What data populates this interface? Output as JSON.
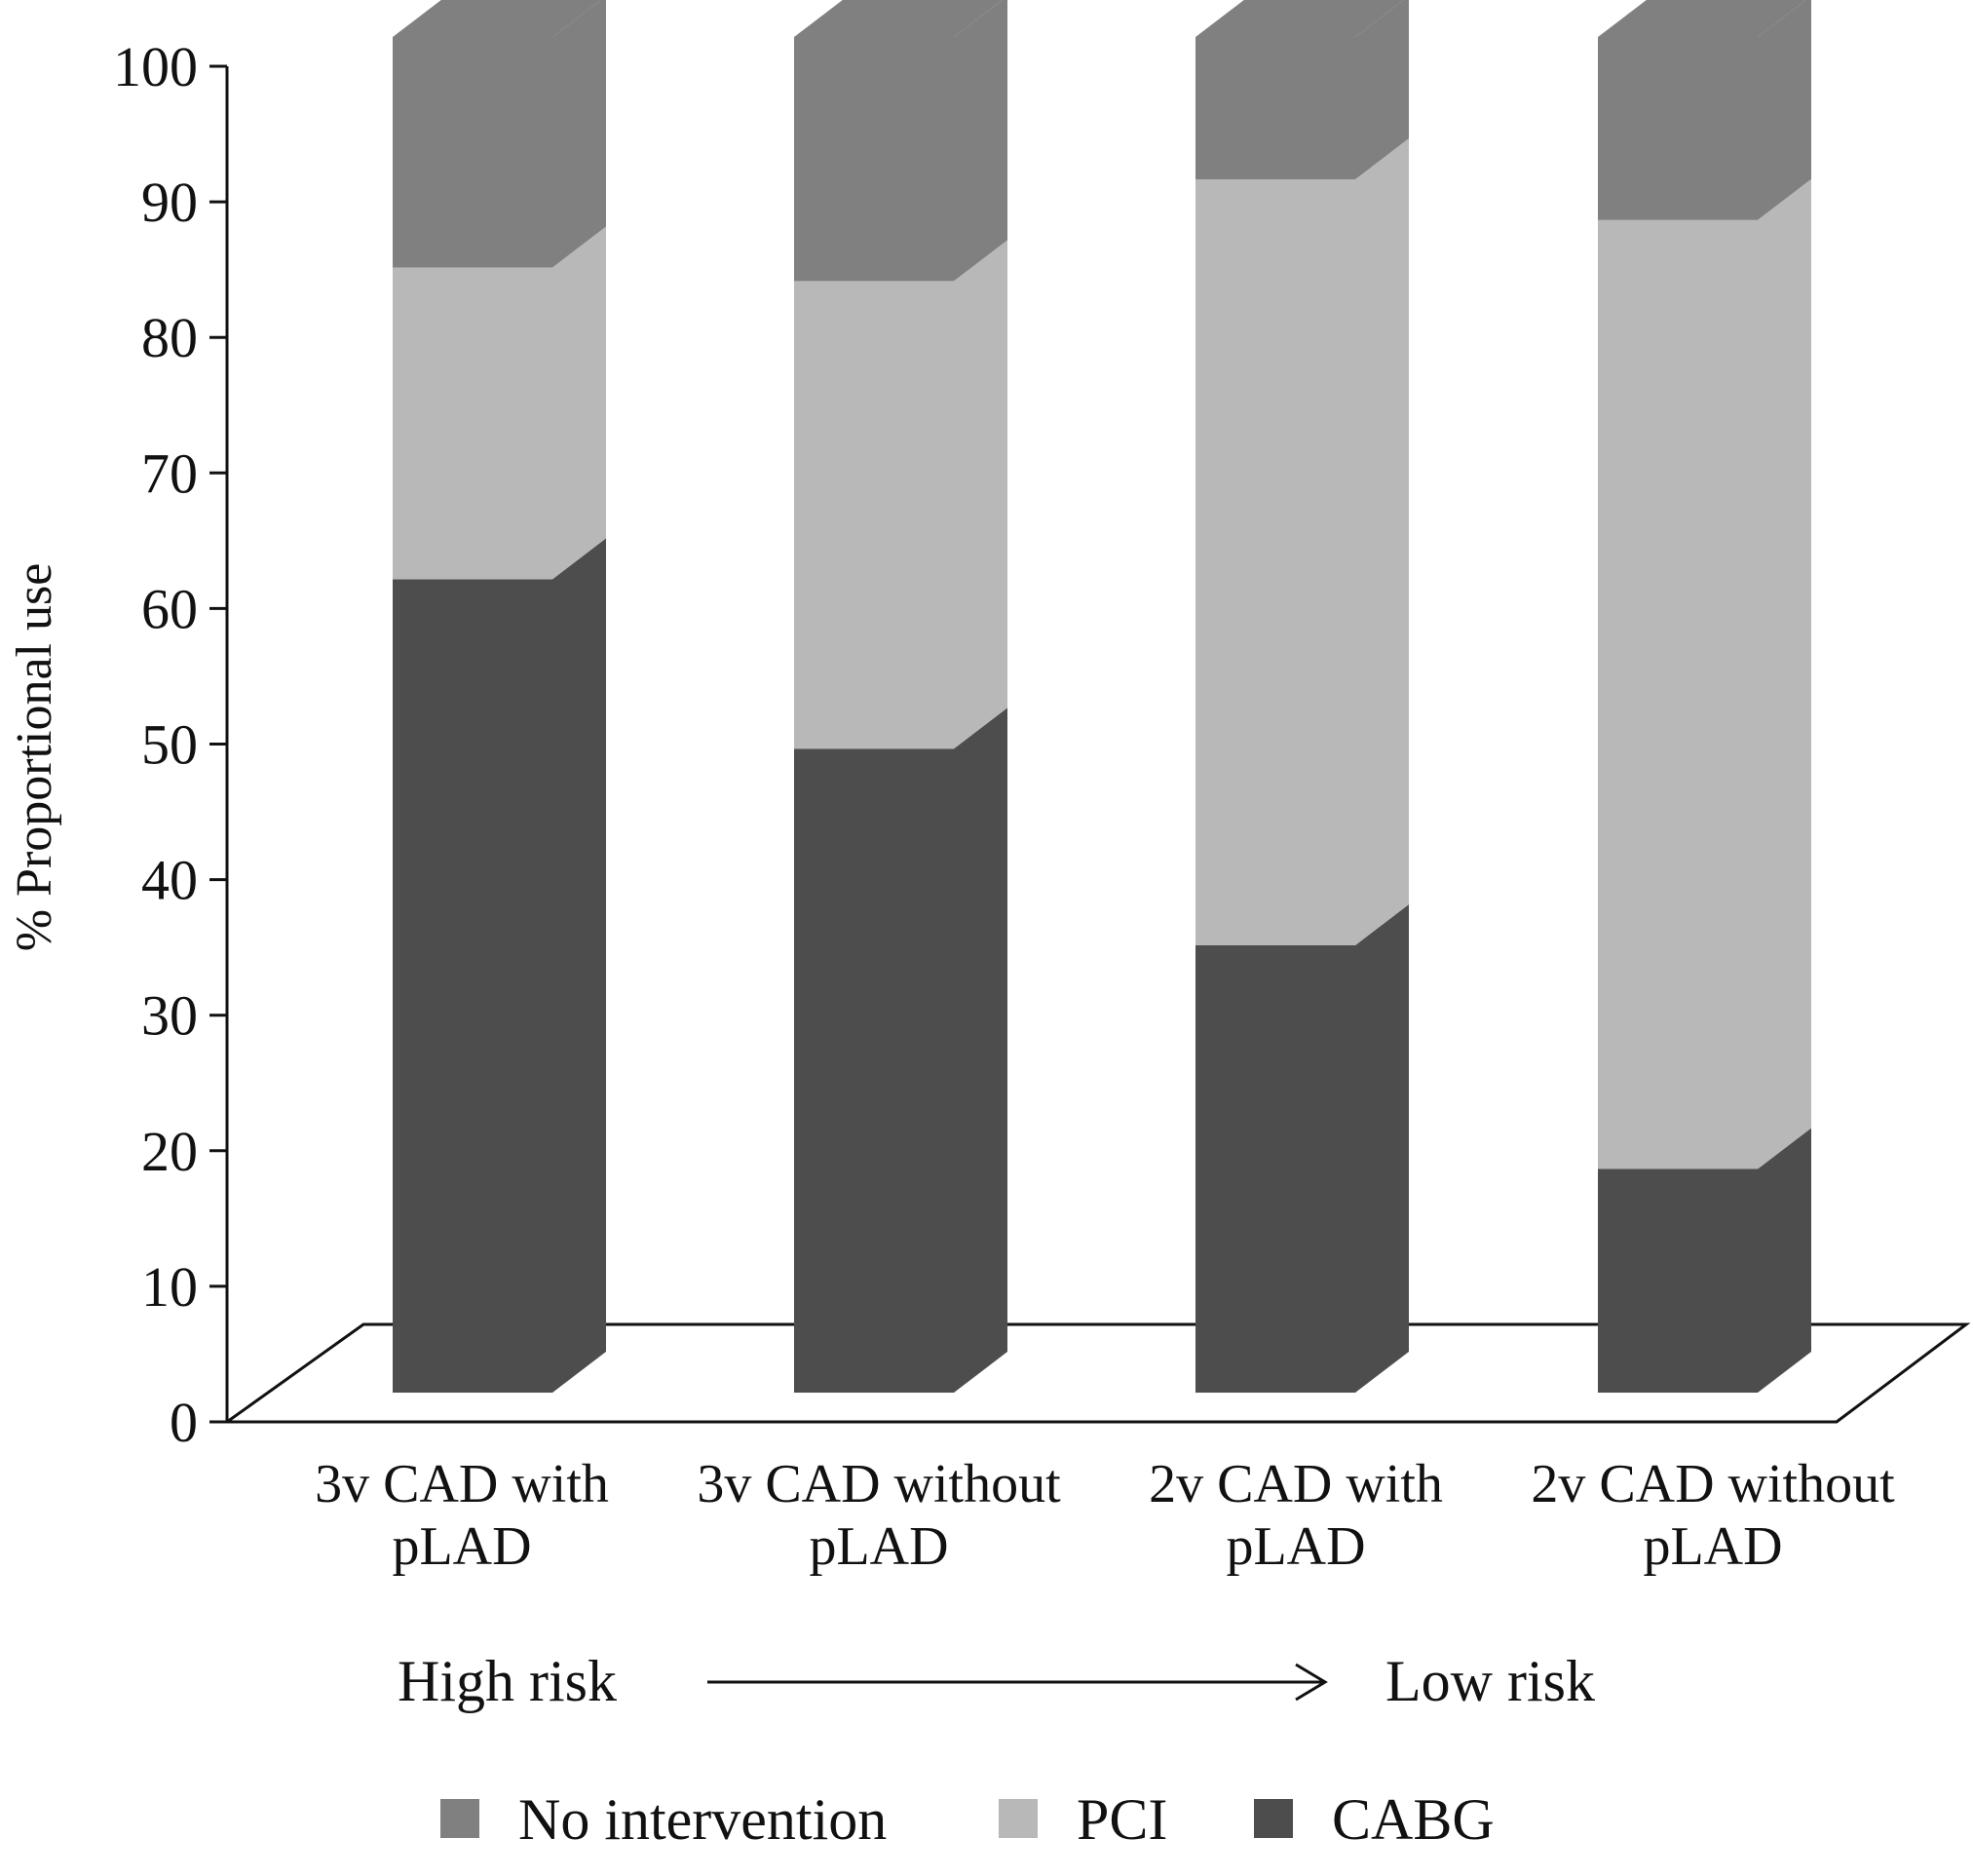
{
  "chart_data": {
    "type": "bar",
    "stacked": true,
    "three_d": true,
    "ylabel": "% Proportional use",
    "ylim": [
      0,
      100
    ],
    "yticks": [
      "0",
      "10",
      "20",
      "30",
      "40",
      "50",
      "60",
      "70",
      "80",
      "90",
      "100"
    ],
    "categories": [
      [
        "3v CAD with",
        "pLAD"
      ],
      [
        "3v CAD without",
        "pLAD"
      ],
      [
        "2v CAD with",
        "pLAD"
      ],
      [
        "2v CAD without",
        "pLAD"
      ]
    ],
    "series": [
      {
        "name": "CABG",
        "color": "#4d4d4d",
        "values": [
          60,
          47.5,
          33,
          16.5
        ]
      },
      {
        "name": "PCI",
        "color": "#b8b8b8",
        "values": [
          23,
          34.5,
          56.5,
          70
        ]
      },
      {
        "name": "No intervention",
        "color": "#808080",
        "values": [
          17,
          18,
          10.5,
          13.5
        ]
      }
    ],
    "legend": {
      "position": "bottom",
      "order": [
        "No intervention",
        "PCI",
        "CABG"
      ]
    },
    "annotation": {
      "left": "High risk",
      "right": "Low risk"
    }
  }
}
